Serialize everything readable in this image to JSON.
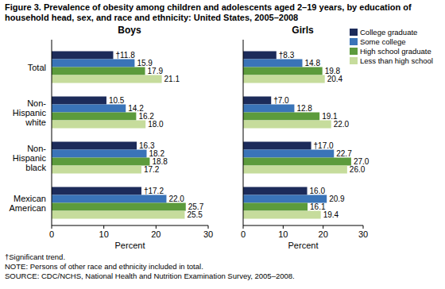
{
  "title": "Figure 3. Prevalence of obesity among children and adolescents aged 2–19 years, by education of household head, sex, and race and ethnicity: United States, 2005–2008",
  "chart_data": [
    {
      "type": "bar",
      "orientation": "horizontal",
      "title": "Boys",
      "xlabel": "Percent",
      "categories": [
        "Total",
        "Non-Hispanic white",
        "Non-Hispanic black",
        "Mexican American"
      ],
      "series": [
        {
          "color": "#1c2b5a",
          "values": [
            11.8,
            10.5,
            16.3,
            17.2
          ],
          "value_labels": [
            "†11.8",
            "10.5",
            "16.3",
            "†17.2"
          ]
        },
        {
          "color": "#3a74b8",
          "values": [
            15.9,
            14.2,
            18.2,
            22.0
          ],
          "value_labels": [
            "15.9",
            "14.2",
            "18.2",
            "22.0"
          ]
        },
        {
          "color": "#5c9b3c",
          "values": [
            17.9,
            16.2,
            18.8,
            25.7
          ],
          "value_labels": [
            "17.9",
            "16.2",
            "18.8",
            "25.7"
          ]
        },
        {
          "color": "#c6dc9c",
          "values": [
            21.1,
            18.0,
            17.2,
            25.5
          ],
          "value_labels": [
            "21.1",
            "18.0",
            "17.2",
            "25.5"
          ]
        }
      ],
      "xlim": [
        0,
        30
      ],
      "xticks": [
        0,
        10,
        20,
        30
      ],
      "grid": false,
      "data_labels": true
    },
    {
      "type": "bar",
      "orientation": "horizontal",
      "title": "Girls",
      "xlabel": "Percent",
      "categories": [
        "Total",
        "Non-Hispanic white",
        "Non-Hispanic black",
        "Mexican American"
      ],
      "series": [
        {
          "name": "College graduate",
          "color": "#1c2b5a",
          "values": [
            8.3,
            7.0,
            17.0,
            16.0
          ],
          "value_labels": [
            "†8.3",
            "†7.0",
            "†17.0",
            "16.0"
          ]
        },
        {
          "name": "Some college",
          "color": "#3a74b8",
          "values": [
            14.8,
            12.8,
            22.7,
            20.9
          ],
          "value_labels": [
            "14.8",
            "12.8",
            "22.7",
            "20.9"
          ]
        },
        {
          "name": "High school graduate",
          "color": "#5c9b3c",
          "values": [
            19.8,
            19.1,
            27.0,
            16.1
          ],
          "value_labels": [
            "19.8",
            "19.1",
            "27.0",
            "16.1"
          ]
        },
        {
          "name": "Less than high school",
          "color": "#c6dc9c",
          "values": [
            20.4,
            22.0,
            26.0,
            19.4
          ],
          "value_labels": [
            "20.4",
            "22.0",
            "26.0",
            "19.4"
          ]
        }
      ],
      "xlim": [
        0,
        30
      ],
      "xticks": [
        0,
        10,
        20,
        30
      ],
      "grid": false,
      "data_labels": true,
      "tick_labels": "x",
      "legend": "upper right"
    }
  ],
  "notes": [
    "†Significant trend.",
    "NOTE: Persons of other race and ethnicity included in total.",
    "SOURCE: CDC/NCHS, National Health and Nutrition Examination Survey, 2005–2008."
  ]
}
